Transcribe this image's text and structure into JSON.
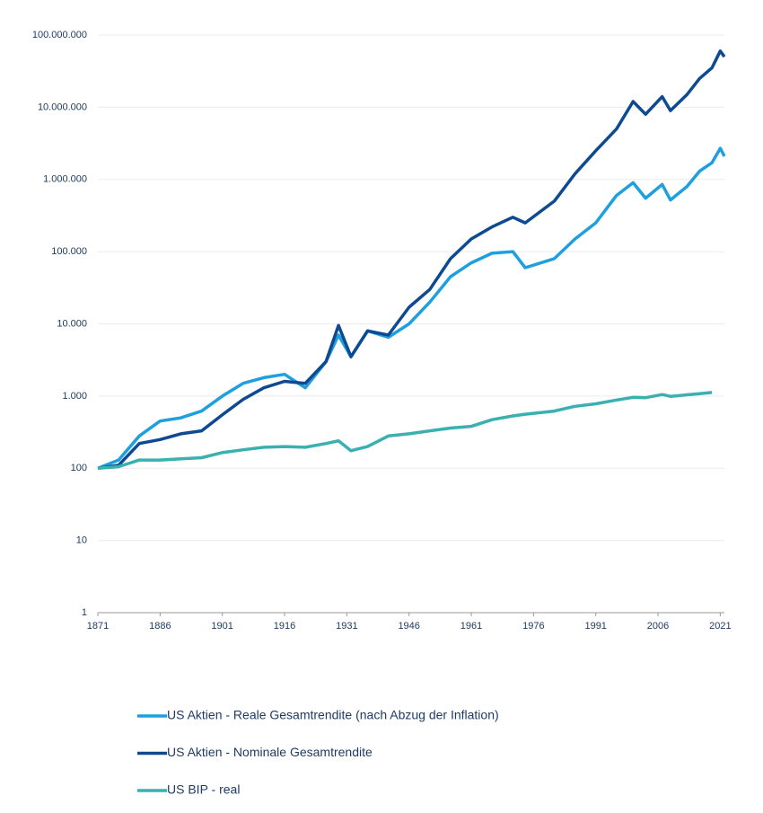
{
  "chart_data": {
    "type": "line",
    "log_scale": true,
    "grid": true,
    "legend": "bottom",
    "x": [
      1871,
      1876,
      1881,
      1886,
      1891,
      1896,
      1901,
      1906,
      1911,
      1916,
      1921,
      1926,
      1929,
      1932,
      1936,
      1941,
      1946,
      1951,
      1956,
      1961,
      1966,
      1971,
      1974,
      1981,
      1986,
      1991,
      1996,
      2000,
      2003,
      2007,
      2009,
      2013,
      2016,
      2019,
      2021,
      2022
    ],
    "series": [
      {
        "name": "US Aktien - Reale Gesamtrendite (nach Abzug der Inflation)",
        "color": "#1ea0e0",
        "values": [
          100,
          130,
          280,
          450,
          500,
          620,
          1000,
          1500,
          1800,
          2000,
          1300,
          3000,
          7000,
          3500,
          8000,
          6500,
          10000,
          20000,
          45000,
          70000,
          95000,
          100000,
          60000,
          80000,
          150000,
          250000,
          600000,
          900000,
          550000,
          850000,
          520000,
          800000,
          1300000,
          1700000,
          2700000,
          2100000
        ]
      },
      {
        "name": "US Aktien - Nominale Gesamtrendite",
        "color": "#0d4a92",
        "values": [
          100,
          110,
          220,
          250,
          300,
          330,
          550,
          900,
          1300,
          1600,
          1500,
          3000,
          9500,
          3500,
          8000,
          7000,
          17000,
          30000,
          80000,
          150000,
          220000,
          300000,
          250000,
          500000,
          1200000,
          2500000,
          5000000,
          12000000,
          8000000,
          14000000,
          9000000,
          15000000,
          25000000,
          35000000,
          60000000,
          50000000
        ]
      },
      {
        "name": "US BIP - real",
        "color": "#3ab0b0",
        "values": [
          100,
          105,
          130,
          130,
          135,
          140,
          165,
          180,
          195,
          200,
          195,
          220,
          240,
          175,
          200,
          280,
          300,
          330,
          360,
          380,
          470,
          530,
          560,
          620,
          720,
          780,
          880,
          960,
          950,
          1050,
          990,
          1040,
          1080,
          1120,
          null,
          null
        ]
      }
    ],
    "xlim": [
      1871,
      2022
    ],
    "xticks": [
      1871,
      1886,
      1901,
      1916,
      1931,
      1946,
      1961,
      1976,
      1991,
      2006,
      2021
    ],
    "ylim": [
      1,
      100000000
    ],
    "yticks": [
      1,
      10,
      100,
      {
        "value": 1000,
        "label": "1.000"
      },
      {
        "value": 10000,
        "label": "10.000"
      },
      {
        "value": 100000,
        "label": "100.000"
      },
      {
        "value": 1000000,
        "label": "1.000.000"
      },
      {
        "value": 10000000,
        "label": "10.000.000"
      },
      {
        "value": 100000000,
        "label": "100.000.000"
      }
    ]
  }
}
